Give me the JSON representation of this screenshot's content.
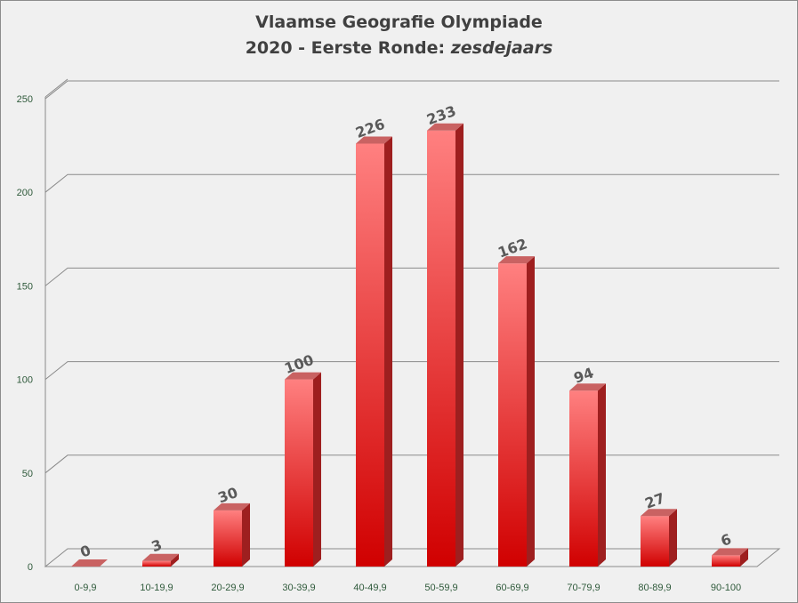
{
  "chart_data": {
    "type": "bar",
    "title_line1": "Vlaamse Geografie Olympiade",
    "title_line2_prefix": "2020 - Eerste Ronde: ",
    "title_line2_italic": "zesdejaars",
    "categories": [
      "0-9,9",
      "10-19,9",
      "20-29,9",
      "30-39,9",
      "40-49,9",
      "50-59,9",
      "60-69,9",
      "70-79,9",
      "80-89,9",
      "90-100"
    ],
    "values": [
      0,
      3,
      30,
      100,
      226,
      233,
      162,
      94,
      27,
      6
    ],
    "yticks": [
      0,
      50,
      100,
      150,
      200,
      250
    ],
    "ylim": [
      0,
      250
    ],
    "xlabel": "",
    "ylabel": "",
    "grid": true,
    "legend": "none",
    "bar_color_top": "#ff8080",
    "bar_color_bottom": "#d00000",
    "bar_side_color": "#9e1f1f",
    "bar_cap_color": "#c96262"
  }
}
